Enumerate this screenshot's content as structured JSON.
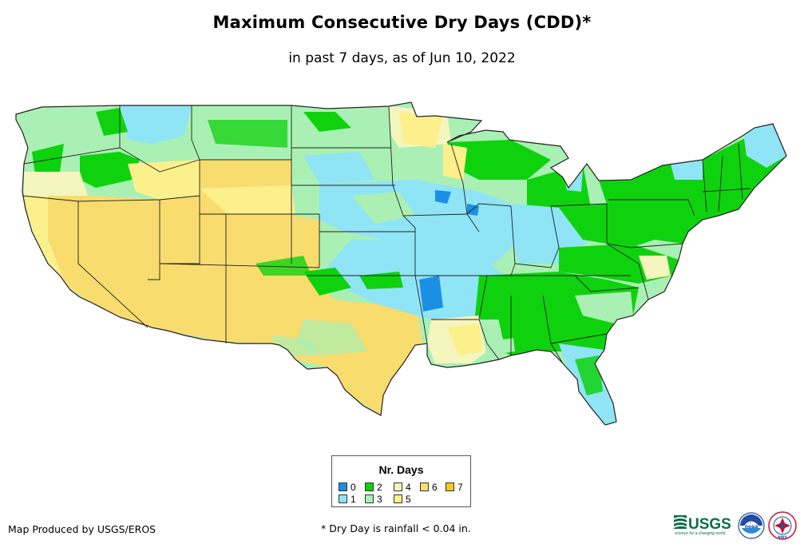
{
  "title": "Maximum Consecutive Dry Days (CDD)*",
  "subtitle": "in past 7 days, as of Jun 10, 2022",
  "legend": {
    "title": "Nr. Days",
    "items": [
      {
        "label": "0",
        "color": "#1a8fe3"
      },
      {
        "label": "1",
        "color": "#8fe4f5"
      },
      {
        "label": "2",
        "color": "#0fd20f"
      },
      {
        "label": "3",
        "color": "#aaf0b4"
      },
      {
        "label": "4",
        "color": "#f5f5be"
      },
      {
        "label": "5",
        "color": "#fcf08c"
      },
      {
        "label": "6",
        "color": "#f8dc6e"
      },
      {
        "label": "7",
        "color": "#f8c81e"
      }
    ]
  },
  "credit": "Map Produced by USGS/EROS",
  "footnote": "* Dry Day is rainfall < 0.04 in.",
  "logos": {
    "usgs": "USGS",
    "usgs_tagline": "science for a changing world",
    "noaa": "noaa",
    "nws": "NWS"
  },
  "icons": [
    "usgs-logo",
    "noaa-logo-icon",
    "nws-logo-icon"
  ]
}
